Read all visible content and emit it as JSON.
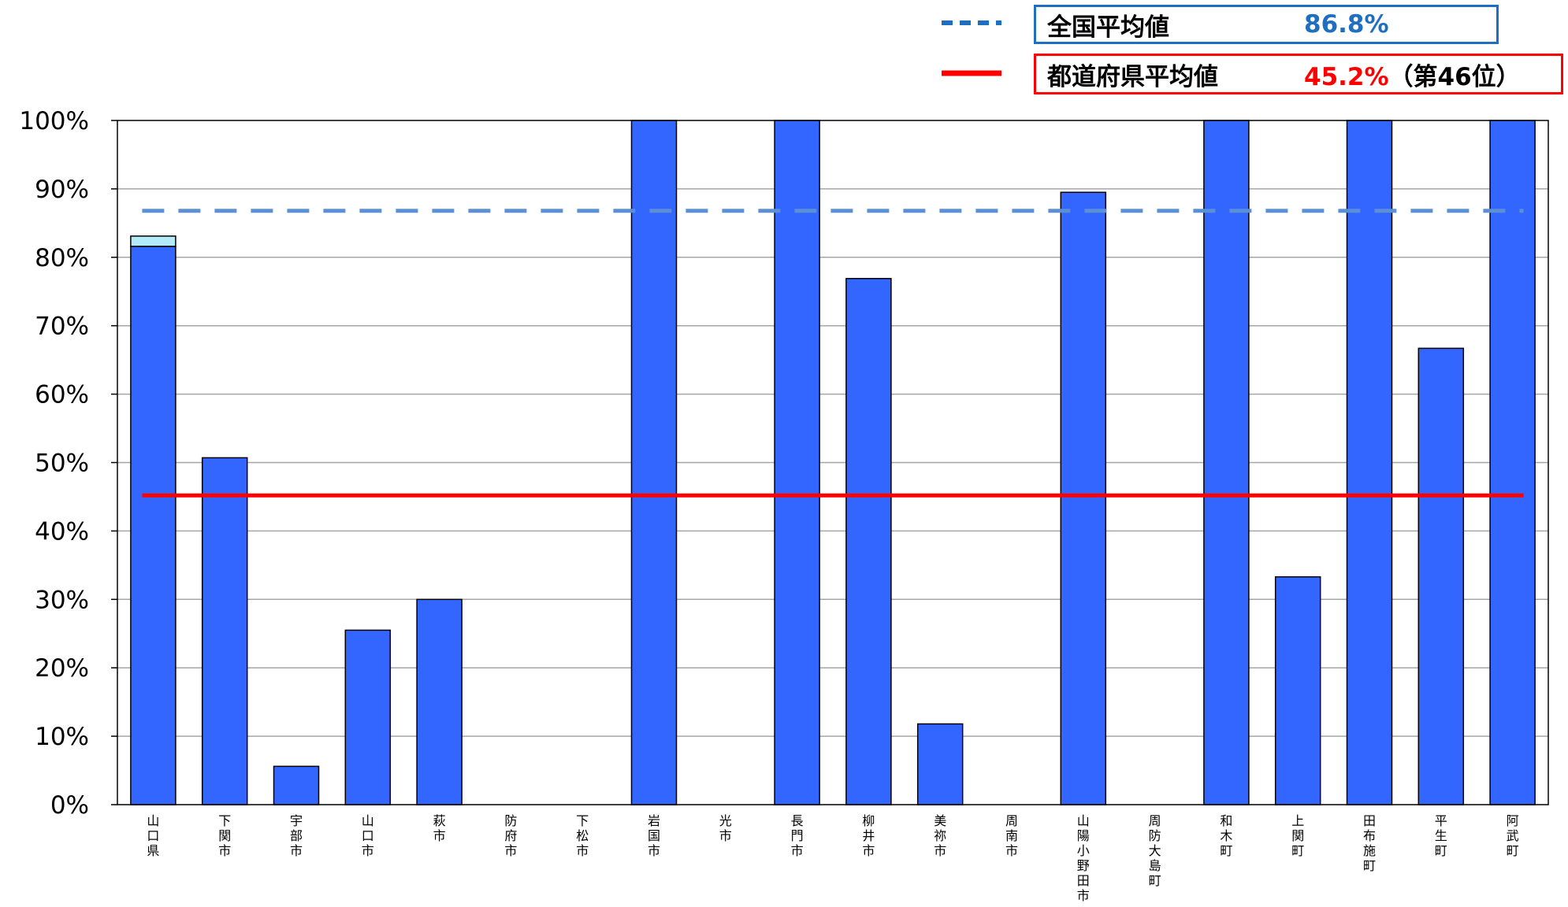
{
  "legend": {
    "national": {
      "label": "全国平均値",
      "value": "86.8%",
      "color": "#1f6fc0",
      "line_color": "#1f6fc0"
    },
    "prefecture": {
      "label": "都道府県平均値",
      "value": "45.2%",
      "suffix": "（第46位）",
      "color": "#ff0000",
      "line_color": "#ff0000"
    }
  },
  "chart_data": {
    "type": "bar",
    "categories": [
      "山口県",
      "下関市",
      "宇部市",
      "山口市",
      "萩市",
      "防府市",
      "下松市",
      "岩国市",
      "光市",
      "長門市",
      "柳井市",
      "美祢市",
      "周南市",
      "山陽小野田市",
      "周防大島町",
      "和木町",
      "上関町",
      "田布施町",
      "平生町",
      "阿武町"
    ],
    "values": [
      81.6,
      50.7,
      5.6,
      25.5,
      30.0,
      0,
      0,
      100,
      0,
      100,
      76.9,
      11.8,
      0,
      89.5,
      0,
      100,
      33.3,
      100,
      66.7,
      100
    ],
    "stacked_extra": [
      1.5,
      0,
      0,
      0,
      0,
      0,
      0,
      0,
      0,
      0,
      0,
      0,
      0,
      0,
      0,
      0,
      0,
      0,
      0,
      0
    ],
    "ylim": [
      0,
      100
    ],
    "yticks": [
      "0%",
      "10%",
      "20%",
      "30%",
      "40%",
      "50%",
      "60%",
      "70%",
      "80%",
      "90%",
      "100%"
    ],
    "reference_lines": [
      {
        "value": 86.8,
        "style": "dashed",
        "color": "#5b8fd6"
      },
      {
        "value": 45.2,
        "style": "solid",
        "color": "#ff0000"
      }
    ],
    "bar_color": "#3366ff",
    "extra_color": "#b3ecf8",
    "grid": true,
    "legend_position": "top-right"
  }
}
